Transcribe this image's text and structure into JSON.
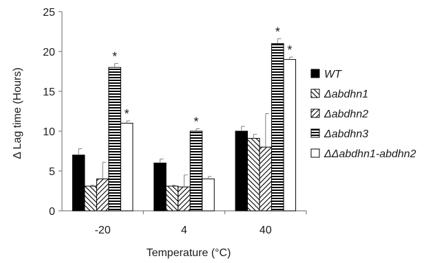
{
  "chart_data": {
    "type": "bar",
    "ylabel": "Δ Lag time (Hours)",
    "xlabel": "Temperature (°C)",
    "categories": [
      "-20",
      "4",
      "40"
    ],
    "ylim": [
      0,
      25
    ],
    "yticks": [
      0,
      5,
      10,
      15,
      20,
      25
    ],
    "grid": false,
    "legend_position": "right",
    "series": [
      {
        "name": "WT",
        "values": [
          7,
          6,
          10
        ],
        "errors": [
          0.8,
          0.5,
          0.6
        ],
        "fill": "solid",
        "color": "#000000",
        "significant": [
          false,
          false,
          false
        ]
      },
      {
        "name": "Δabdhn1",
        "values": [
          3.1,
          3.1,
          9.1
        ],
        "errors": [
          0.1,
          0.1,
          0.5
        ],
        "fill": "diagonal-backward",
        "color": "#000000",
        "significant": [
          false,
          false,
          false
        ]
      },
      {
        "name": "Δabdhn2",
        "values": [
          4,
          3,
          8
        ],
        "errors": [
          2.1,
          1.5,
          4.2
        ],
        "fill": "diagonal-forward",
        "color": "#000000",
        "significant": [
          false,
          false,
          false
        ]
      },
      {
        "name": "Δabdhn3",
        "values": [
          18,
          10,
          21
        ],
        "errors": [
          0.5,
          0.3,
          0.6
        ],
        "fill": "horizontal",
        "color": "#000000",
        "significant": [
          true,
          true,
          true
        ]
      },
      {
        "name": "ΔΔabdhn1-abdhn2",
        "values": [
          11,
          4,
          19
        ],
        "errors": [
          0.3,
          0.3,
          0.3
        ],
        "fill": "none",
        "color": "#ffffff",
        "significant": [
          true,
          false,
          true
        ]
      }
    ],
    "significance_marker": "*"
  }
}
